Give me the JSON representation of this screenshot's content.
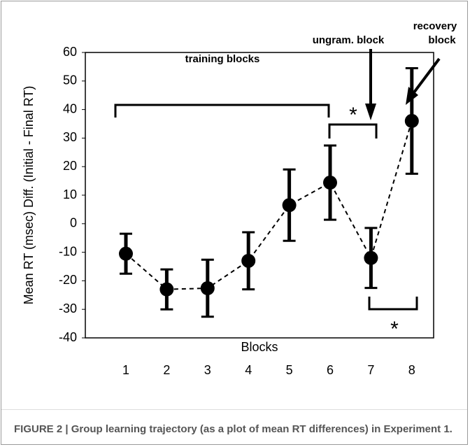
{
  "chart_data": {
    "type": "line",
    "ylabel": "Mean RT (msec) Diff. (Initial - Final RT)",
    "xlabel": "Blocks",
    "categories": [
      "1",
      "2",
      "3",
      "4",
      "5",
      "6",
      "7",
      "8"
    ],
    "series": [
      {
        "color": "#000000",
        "values": [
          -10.5,
          -23,
          -22.6,
          -13,
          6.5,
          14.4,
          -12,
          36
        ],
        "errors": [
          7,
          7,
          10,
          10,
          12.5,
          13,
          10.5,
          18.5
        ]
      }
    ],
    "ylim": [
      -40,
      60
    ],
    "yticks": [
      -40,
      -30,
      -20,
      -10,
      0,
      10,
      20,
      30,
      40,
      50,
      60
    ],
    "annotations": {
      "training": "training blocks",
      "ungram": "ungram. block",
      "recovery": [
        "recovery",
        "block"
      ],
      "star1": "*",
      "star2": "*"
    },
    "caption": "FIGURE 2 | Group learning trajectory (as a plot of mean RT differences) in Experiment 1."
  }
}
